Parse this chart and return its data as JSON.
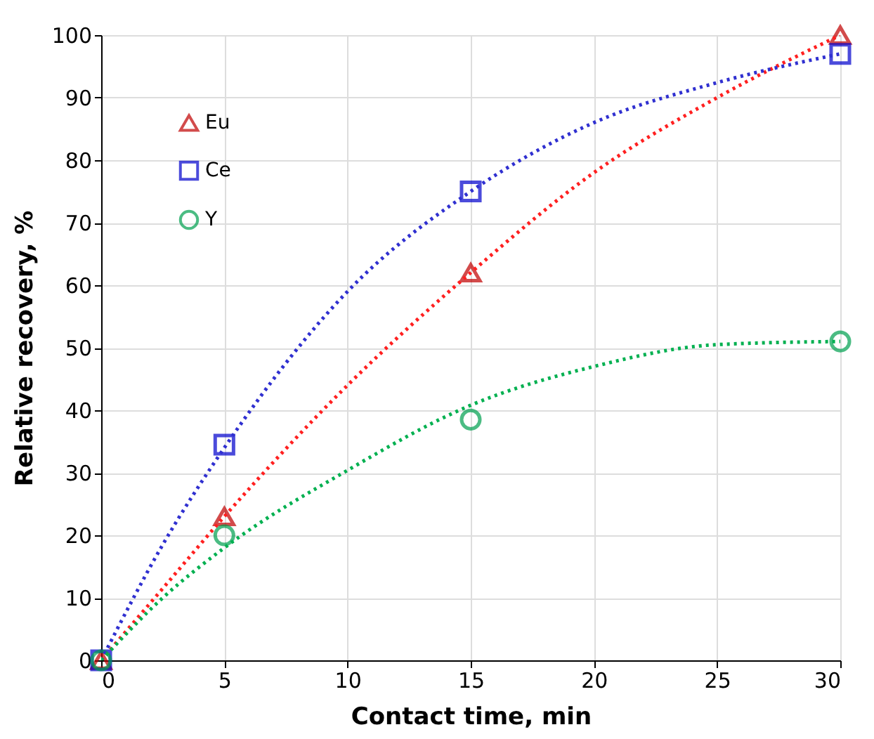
{
  "chart_data": {
    "type": "scatter",
    "xlabel": "Contact time, min",
    "ylabel": "Relative recovery, %",
    "x": [
      0,
      5,
      15,
      30
    ],
    "xlim": [
      0,
      30
    ],
    "xticks": [
      0,
      5,
      10,
      15,
      20,
      25,
      30
    ],
    "ylim": [
      0,
      100
    ],
    "yticks": [
      0,
      10,
      20,
      30,
      40,
      50,
      60,
      70,
      80,
      90,
      100
    ],
    "grid": true,
    "legend": "top left",
    "series": [
      {
        "name": "Eu",
        "color": "#c00000",
        "marker": "triangle",
        "values": [
          0,
          23,
          62,
          100
        ]
      },
      {
        "name": "Ce",
        "color": "#0000cc",
        "marker": "square",
        "values": [
          0,
          34.5,
          75,
          97
        ]
      },
      {
        "name": "Y",
        "color": "#00a050",
        "marker": "circle",
        "values": [
          0,
          20,
          38.5,
          51
        ]
      },
      {
        "type": "line",
        "color": "#ff2020",
        "line_style": "dotted",
        "marker": "none",
        "x": [
          0,
          2.5,
          5,
          10,
          15,
          20,
          25,
          30
        ],
        "values": [
          0,
          11.5,
          23,
          44,
          62,
          78,
          90,
          100
        ]
      },
      {
        "type": "line",
        "color": "#3030d0",
        "line_style": "dotted",
        "marker": "none",
        "x": [
          0,
          2.5,
          5,
          10,
          15,
          20,
          25,
          30
        ],
        "values": [
          0,
          18.5,
          34,
          59,
          75,
          86,
          92.4,
          97
        ]
      },
      {
        "type": "line",
        "color": "#00b050",
        "line_style": "dotted",
        "marker": "none",
        "x": [
          0,
          2.5,
          5,
          10,
          15,
          20,
          25,
          30
        ],
        "values": [
          0,
          10,
          18,
          30.4,
          40.8,
          47,
          50.5,
          51
        ]
      }
    ]
  }
}
